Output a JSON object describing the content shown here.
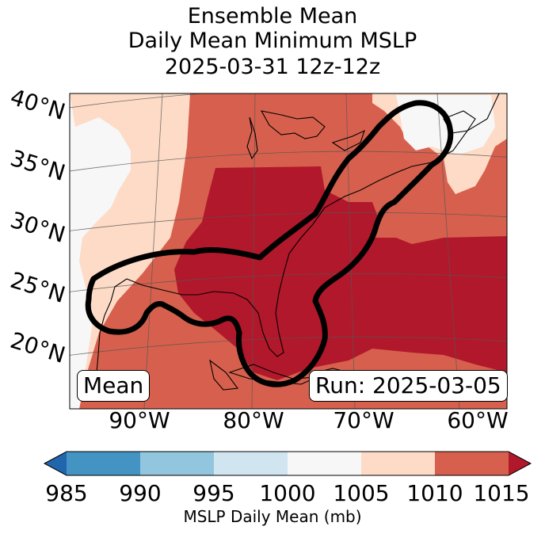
{
  "title": {
    "line1": "Ensemble Mean",
    "line2": "Daily Mean Minimum MSLP",
    "line3": "2025-03-31 12z-12z"
  },
  "map": {
    "lat_labels": [
      "40°N",
      "35°N",
      "30°N",
      "25°N",
      "20°N"
    ],
    "lon_labels": [
      "90°W",
      "80°W",
      "70°W",
      "60°W"
    ],
    "badge_left": "Mean",
    "badge_right": "Run: 2025-03-05"
  },
  "colorbar": {
    "ticks": [
      "985",
      "990",
      "995",
      "1000",
      "1005",
      "1010",
      "1015"
    ],
    "label": "MSLP Daily Mean (mb)",
    "colors": {
      "under": "#2166ac",
      "985-990": "#4393c3",
      "990-995": "#92c5de",
      "995-1000": "#d1e5f0",
      "1000-1005": "#f7f7f7",
      "1005-1010": "#fddbc7",
      "1010-1015": "#d6604d",
      "over": "#b2182b"
    }
  }
}
